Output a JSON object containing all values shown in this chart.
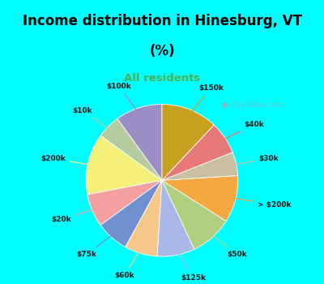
{
  "title_line1": "Income distribution in Hinesburg, VT",
  "title_line2": "(%)",
  "subtitle": "All residents",
  "title_color": "#000000",
  "subtitle_color": "#4caf50",
  "background_top": "#00ffff",
  "background_chart": "#daeeda",
  "watermark": "City-Data.com",
  "slices": [
    {
      "label": "$100k",
      "value": 10,
      "color": "#9b8ec4"
    },
    {
      "label": "$10k",
      "value": 5,
      "color": "#b5cca0"
    },
    {
      "label": "$200k",
      "value": 13,
      "color": "#f5f07a"
    },
    {
      "label": "$20k",
      "value": 7,
      "color": "#f4a0a0"
    },
    {
      "label": "$75k",
      "value": 7,
      "color": "#7090d0"
    },
    {
      "label": "$60k",
      "value": 7,
      "color": "#f5c88a"
    },
    {
      "label": "$125k",
      "value": 8,
      "color": "#aab8e8"
    },
    {
      "label": "$50k",
      "value": 9,
      "color": "#b0d080"
    },
    {
      "label": "> $200k",
      "value": 10,
      "color": "#f5a840"
    },
    {
      "label": "$30k",
      "value": 5,
      "color": "#c8c0a0"
    },
    {
      "label": "$40k",
      "value": 7,
      "color": "#e87878"
    },
    {
      "label": "$150k",
      "value": 12,
      "color": "#c8a020"
    }
  ],
  "figsize": [
    4.0,
    3.5
  ],
  "dpi": 100
}
